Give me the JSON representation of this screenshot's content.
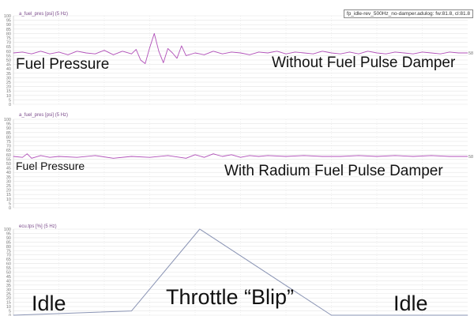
{
  "file_label": "fp_idle-rev_500Hz_no-damper.adulog: fw:81.8, cl:81.8",
  "annotations": {
    "fuel_pressure_1": "Fuel Pressure",
    "without_damper": "Without Fuel Pulse Damper",
    "fuel_pressure_2": "Fuel Pressure",
    "with_damper": "With Radium Fuel Pulse Damper",
    "idle_left": "Idle",
    "throttle_blip": "Throttle “Blip”",
    "idle_right": "Idle"
  },
  "colors": {
    "fuel_trace": "#b04fb8",
    "tps_trace": "#8a94b4",
    "grid": "#e4e4e4",
    "axis_text": "#777777",
    "title_text": "#7a4a8a"
  },
  "chart_data": [
    {
      "type": "line",
      "title": "a_fuel_pres [psi] (5 Hz)",
      "ylim": [
        0,
        100
      ],
      "yticks": [
        0,
        5,
        10,
        15,
        20,
        25,
        30,
        35,
        40,
        45,
        50,
        55,
        60,
        65,
        70,
        75,
        80,
        85,
        90,
        95,
        100
      ],
      "grid": true,
      "end_value_label": "58",
      "series": [
        {
          "x": [
            0,
            2,
            4,
            6,
            8,
            10,
            12,
            14,
            16,
            18,
            20,
            22,
            24,
            26,
            27,
            28,
            29,
            30,
            31,
            32,
            33,
            34,
            35,
            36,
            37,
            38,
            40,
            42,
            44,
            46,
            48,
            50,
            52,
            54,
            56,
            58,
            60,
            62,
            64,
            66,
            68,
            70,
            72,
            74,
            76,
            78,
            80,
            82,
            84,
            86,
            88,
            90,
            92,
            94,
            96,
            98,
            100
          ],
          "y": [
            58,
            59,
            57,
            60,
            57,
            59,
            56,
            60,
            58,
            57,
            61,
            56,
            60,
            57,
            62,
            50,
            46,
            64,
            80,
            60,
            47,
            63,
            58,
            52,
            66,
            55,
            58,
            56,
            60,
            57,
            59,
            58,
            56,
            59,
            58,
            60,
            57,
            59,
            58,
            57,
            60,
            58,
            57,
            59,
            57,
            60,
            58,
            57,
            59,
            58,
            57,
            59,
            58,
            57,
            59,
            58,
            58
          ]
        }
      ]
    },
    {
      "type": "line",
      "title": "a_fuel_pres [psi] (5 Hz)",
      "ylim": [
        0,
        100
      ],
      "yticks": [
        0,
        5,
        10,
        15,
        20,
        25,
        30,
        35,
        40,
        45,
        50,
        55,
        60,
        65,
        70,
        75,
        80,
        85,
        90,
        95,
        100
      ],
      "grid": true,
      "end_value_label": "58",
      "series": [
        {
          "x": [
            0,
            2,
            3,
            4,
            6,
            8,
            10,
            14,
            18,
            22,
            26,
            30,
            34,
            38,
            40,
            42,
            44,
            46,
            48,
            50,
            52,
            54,
            56,
            60,
            64,
            68,
            72,
            76,
            80,
            84,
            88,
            92,
            96,
            100
          ],
          "y": [
            58,
            57,
            61,
            56,
            59,
            57,
            58,
            57,
            59,
            56,
            58,
            57,
            59,
            56,
            60,
            57,
            61,
            58,
            60,
            57,
            59,
            58,
            59,
            58,
            59,
            58,
            58,
            59,
            58,
            59,
            58,
            59,
            58,
            58
          ]
        }
      ]
    },
    {
      "type": "line",
      "title": "ecu.tps [%] (5 Hz)",
      "ylim": [
        0,
        100
      ],
      "yticks": [
        0,
        5,
        10,
        15,
        20,
        25,
        30,
        35,
        40,
        45,
        50,
        55,
        60,
        65,
        70,
        75,
        80,
        85,
        90,
        95,
        100
      ],
      "grid": true,
      "series": [
        {
          "x": [
            0,
            26,
            41,
            70,
            100
          ],
          "y": [
            0,
            5,
            100,
            0,
            0
          ]
        }
      ]
    }
  ]
}
